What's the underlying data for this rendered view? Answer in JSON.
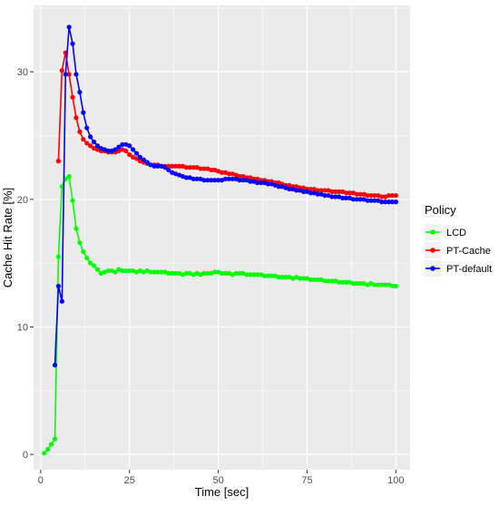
{
  "chart_data": {
    "type": "line",
    "title": "",
    "xlabel": "Time [sec]",
    "ylabel": "Cache Hit Rate [%]",
    "xlim": [
      -2,
      104
    ],
    "ylim": [
      -1.2,
      35.2
    ],
    "x_ticks": [
      0,
      25,
      50,
      75,
      100
    ],
    "y_ticks": [
      0,
      10,
      20,
      30
    ],
    "x_tick_labels": [
      "0",
      "25",
      "50",
      "75",
      "100"
    ],
    "y_tick_labels": [
      "0",
      "10",
      "20",
      "30"
    ],
    "grid": true,
    "legend": {
      "title": "Policy",
      "position": "right"
    },
    "series": [
      {
        "name": "LCD",
        "color": "#00ff00",
        "points": [
          [
            1,
            0.1
          ],
          [
            2,
            0.4
          ],
          [
            3,
            0.8
          ],
          [
            4,
            1.2
          ],
          [
            5,
            15.5
          ],
          [
            6,
            21.0
          ],
          [
            7,
            21.6
          ],
          [
            8,
            21.8
          ],
          [
            9,
            19.9
          ],
          [
            10,
            17.7
          ],
          [
            11,
            16.6
          ],
          [
            12,
            15.9
          ],
          [
            13,
            15.4
          ],
          [
            14,
            15.0
          ],
          [
            15,
            14.8
          ],
          [
            16,
            14.5
          ],
          [
            17,
            14.2
          ],
          [
            18,
            14.3
          ],
          [
            19,
            14.4
          ],
          [
            20,
            14.4
          ],
          [
            21,
            14.3
          ],
          [
            22,
            14.5
          ],
          [
            23,
            14.4
          ],
          [
            24,
            14.4
          ],
          [
            25,
            14.4
          ],
          [
            26,
            14.4
          ],
          [
            27,
            14.3
          ],
          [
            28,
            14.4
          ],
          [
            29,
            14.3
          ],
          [
            30,
            14.4
          ],
          [
            31,
            14.3
          ],
          [
            32,
            14.3
          ],
          [
            33,
            14.3
          ],
          [
            34,
            14.3
          ],
          [
            35,
            14.3
          ],
          [
            36,
            14.2
          ],
          [
            37,
            14.2
          ],
          [
            38,
            14.2
          ],
          [
            39,
            14.2
          ],
          [
            40,
            14.1
          ],
          [
            41,
            14.2
          ],
          [
            42,
            14.2
          ],
          [
            43,
            14.1
          ],
          [
            44,
            14.2
          ],
          [
            45,
            14.1
          ],
          [
            46,
            14.2
          ],
          [
            47,
            14.2
          ],
          [
            48,
            14.2
          ],
          [
            49,
            14.3
          ],
          [
            50,
            14.3
          ],
          [
            51,
            14.2
          ],
          [
            52,
            14.2
          ],
          [
            53,
            14.2
          ],
          [
            54,
            14.1
          ],
          [
            55,
            14.2
          ],
          [
            56,
            14.2
          ],
          [
            57,
            14.2
          ],
          [
            58,
            14.1
          ],
          [
            59,
            14.1
          ],
          [
            60,
            14.1
          ],
          [
            61,
            14.1
          ],
          [
            62,
            14.1
          ],
          [
            63,
            14.0
          ],
          [
            64,
            14.0
          ],
          [
            65,
            14.0
          ],
          [
            66,
            14.0
          ],
          [
            67,
            13.9
          ],
          [
            68,
            13.9
          ],
          [
            69,
            13.9
          ],
          [
            70,
            13.9
          ],
          [
            71,
            13.8
          ],
          [
            72,
            13.9
          ],
          [
            73,
            13.8
          ],
          [
            74,
            13.8
          ],
          [
            75,
            13.8
          ],
          [
            76,
            13.7
          ],
          [
            77,
            13.7
          ],
          [
            78,
            13.7
          ],
          [
            79,
            13.7
          ],
          [
            80,
            13.6
          ],
          [
            81,
            13.6
          ],
          [
            82,
            13.6
          ],
          [
            83,
            13.6
          ],
          [
            84,
            13.5
          ],
          [
            85,
            13.5
          ],
          [
            86,
            13.5
          ],
          [
            87,
            13.5
          ],
          [
            88,
            13.4
          ],
          [
            89,
            13.4
          ],
          [
            90,
            13.4
          ],
          [
            91,
            13.4
          ],
          [
            92,
            13.3
          ],
          [
            93,
            13.4
          ],
          [
            94,
            13.3
          ],
          [
            95,
            13.3
          ],
          [
            96,
            13.3
          ],
          [
            97,
            13.3
          ],
          [
            98,
            13.3
          ],
          [
            99,
            13.2
          ],
          [
            100,
            13.2
          ]
        ]
      },
      {
        "name": "PT-Cache",
        "color": "#ff0000",
        "points": [
          [
            5,
            23.0
          ],
          [
            6,
            30.1
          ],
          [
            7,
            31.5
          ],
          [
            8,
            29.8
          ],
          [
            9,
            28.0
          ],
          [
            10,
            26.4
          ],
          [
            11,
            25.3
          ],
          [
            12,
            24.7
          ],
          [
            13,
            24.4
          ],
          [
            14,
            24.2
          ],
          [
            15,
            24.0
          ],
          [
            16,
            23.9
          ],
          [
            17,
            23.8
          ],
          [
            18,
            23.8
          ],
          [
            19,
            23.7
          ],
          [
            20,
            23.7
          ],
          [
            21,
            23.7
          ],
          [
            22,
            23.8
          ],
          [
            23,
            23.9
          ],
          [
            24,
            23.8
          ],
          [
            25,
            23.5
          ],
          [
            26,
            23.3
          ],
          [
            27,
            23.2
          ],
          [
            28,
            23.0
          ],
          [
            29,
            22.9
          ],
          [
            30,
            22.8
          ],
          [
            31,
            22.7
          ],
          [
            32,
            22.7
          ],
          [
            33,
            22.7
          ],
          [
            34,
            22.6
          ],
          [
            35,
            22.6
          ],
          [
            36,
            22.6
          ],
          [
            37,
            22.6
          ],
          [
            38,
            22.6
          ],
          [
            39,
            22.6
          ],
          [
            40,
            22.6
          ],
          [
            41,
            22.5
          ],
          [
            42,
            22.5
          ],
          [
            43,
            22.5
          ],
          [
            44,
            22.5
          ],
          [
            45,
            22.4
          ],
          [
            46,
            22.4
          ],
          [
            47,
            22.4
          ],
          [
            48,
            22.3
          ],
          [
            49,
            22.3
          ],
          [
            50,
            22.2
          ],
          [
            51,
            22.1
          ],
          [
            52,
            22.1
          ],
          [
            53,
            22.0
          ],
          [
            54,
            22.0
          ],
          [
            55,
            21.9
          ],
          [
            56,
            21.8
          ],
          [
            57,
            21.8
          ],
          [
            58,
            21.7
          ],
          [
            59,
            21.7
          ],
          [
            60,
            21.6
          ],
          [
            61,
            21.6
          ],
          [
            62,
            21.5
          ],
          [
            63,
            21.5
          ],
          [
            64,
            21.4
          ],
          [
            65,
            21.4
          ],
          [
            66,
            21.3
          ],
          [
            67,
            21.3
          ],
          [
            68,
            21.2
          ],
          [
            69,
            21.1
          ],
          [
            70,
            21.1
          ],
          [
            71,
            21.0
          ],
          [
            72,
            21.0
          ],
          [
            73,
            20.9
          ],
          [
            74,
            20.9
          ],
          [
            75,
            20.8
          ],
          [
            76,
            20.8
          ],
          [
            77,
            20.8
          ],
          [
            78,
            20.7
          ],
          [
            79,
            20.7
          ],
          [
            80,
            20.7
          ],
          [
            81,
            20.7
          ],
          [
            82,
            20.6
          ],
          [
            83,
            20.6
          ],
          [
            84,
            20.6
          ],
          [
            85,
            20.6
          ],
          [
            86,
            20.5
          ],
          [
            87,
            20.5
          ],
          [
            88,
            20.5
          ],
          [
            89,
            20.4
          ],
          [
            90,
            20.4
          ],
          [
            91,
            20.4
          ],
          [
            92,
            20.3
          ],
          [
            93,
            20.3
          ],
          [
            94,
            20.3
          ],
          [
            95,
            20.3
          ],
          [
            96,
            20.2
          ],
          [
            97,
            20.2
          ],
          [
            98,
            20.3
          ],
          [
            99,
            20.3
          ],
          [
            100,
            20.3
          ]
        ]
      },
      {
        "name": "PT-default",
        "color": "#0000ff",
        "points": [
          [
            4,
            7.0
          ],
          [
            5,
            13.2
          ],
          [
            6,
            12.0
          ],
          [
            7,
            29.8
          ],
          [
            8,
            33.5
          ],
          [
            9,
            32.2
          ],
          [
            10,
            29.8
          ],
          [
            11,
            28.4
          ],
          [
            12,
            26.8
          ],
          [
            13,
            25.6
          ],
          [
            14,
            24.9
          ],
          [
            15,
            24.5
          ],
          [
            16,
            24.2
          ],
          [
            17,
            24.0
          ],
          [
            18,
            23.9
          ],
          [
            19,
            23.8
          ],
          [
            20,
            23.8
          ],
          [
            21,
            23.9
          ],
          [
            22,
            24.1
          ],
          [
            23,
            24.3
          ],
          [
            24,
            24.3
          ],
          [
            25,
            24.2
          ],
          [
            26,
            23.9
          ],
          [
            27,
            23.6
          ],
          [
            28,
            23.3
          ],
          [
            29,
            23.1
          ],
          [
            30,
            22.9
          ],
          [
            31,
            22.7
          ],
          [
            32,
            22.6
          ],
          [
            33,
            22.6
          ],
          [
            34,
            22.6
          ],
          [
            35,
            22.5
          ],
          [
            36,
            22.3
          ],
          [
            37,
            22.1
          ],
          [
            38,
            22.0
          ],
          [
            39,
            21.9
          ],
          [
            40,
            21.8
          ],
          [
            41,
            21.7
          ],
          [
            42,
            21.7
          ],
          [
            43,
            21.6
          ],
          [
            44,
            21.6
          ],
          [
            45,
            21.6
          ],
          [
            46,
            21.5
          ],
          [
            47,
            21.5
          ],
          [
            48,
            21.5
          ],
          [
            49,
            21.5
          ],
          [
            50,
            21.5
          ],
          [
            51,
            21.5
          ],
          [
            52,
            21.6
          ],
          [
            53,
            21.6
          ],
          [
            54,
            21.6
          ],
          [
            55,
            21.6
          ],
          [
            56,
            21.5
          ],
          [
            57,
            21.5
          ],
          [
            58,
            21.5
          ],
          [
            59,
            21.4
          ],
          [
            60,
            21.4
          ],
          [
            61,
            21.3
          ],
          [
            62,
            21.3
          ],
          [
            63,
            21.3
          ],
          [
            64,
            21.2
          ],
          [
            65,
            21.2
          ],
          [
            66,
            21.1
          ],
          [
            67,
            21.0
          ],
          [
            68,
            21.0
          ],
          [
            69,
            20.9
          ],
          [
            70,
            20.8
          ],
          [
            71,
            20.8
          ],
          [
            72,
            20.7
          ],
          [
            73,
            20.7
          ],
          [
            74,
            20.6
          ],
          [
            75,
            20.6
          ],
          [
            76,
            20.5
          ],
          [
            77,
            20.5
          ],
          [
            78,
            20.4
          ],
          [
            79,
            20.4
          ],
          [
            80,
            20.3
          ],
          [
            81,
            20.3
          ],
          [
            82,
            20.2
          ],
          [
            83,
            20.2
          ],
          [
            84,
            20.2
          ],
          [
            85,
            20.1
          ],
          [
            86,
            20.1
          ],
          [
            87,
            20.1
          ],
          [
            88,
            20.0
          ],
          [
            89,
            20.0
          ],
          [
            90,
            20.0
          ],
          [
            91,
            20.0
          ],
          [
            92,
            19.9
          ],
          [
            93,
            19.9
          ],
          [
            94,
            19.9
          ],
          [
            95,
            19.9
          ],
          [
            96,
            19.8
          ],
          [
            97,
            19.8
          ],
          [
            98,
            19.8
          ],
          [
            99,
            19.8
          ],
          [
            100,
            19.8
          ]
        ]
      }
    ]
  }
}
